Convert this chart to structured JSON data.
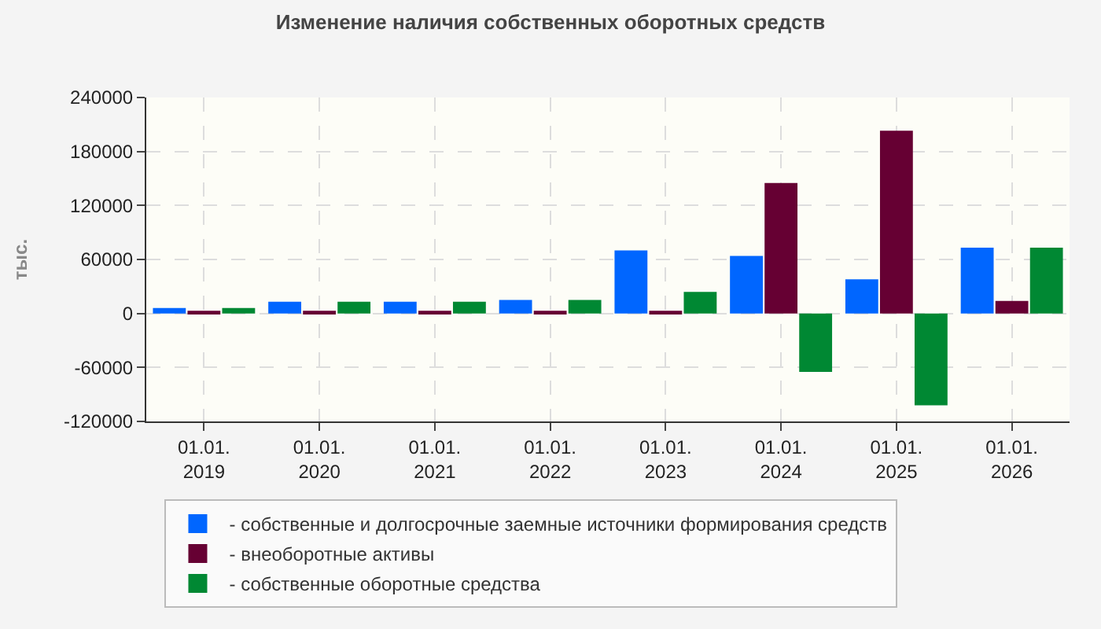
{
  "chart_data": {
    "type": "bar",
    "title": "Изменение наличия собственных оборотных средств",
    "ylabel": "тыс.",
    "categories": [
      "01.01.\n2019",
      "01.01.\n2020",
      "01.01.\n2021",
      "01.01.\n2022",
      "01.01.\n2023",
      "01.01.\n2024",
      "01.01.\n2025",
      "01.01.\n2026"
    ],
    "series": [
      {
        "name": "- собственные и долгосрочные заемные источники формирования средств",
        "color": "#0066ff",
        "values": [
          6000,
          13000,
          13000,
          15000,
          70000,
          64000,
          38000,
          73000
        ]
      },
      {
        "name": "- внеоборотные активы",
        "color": "#660033",
        "values": [
          3000,
          3000,
          3000,
          3000,
          3000,
          145000,
          203000,
          14000
        ]
      },
      {
        "name": "- собственные оборотные средства",
        "color": "#008833",
        "values": [
          6000,
          13000,
          13000,
          15000,
          24000,
          -65000,
          -102000,
          73000
        ]
      }
    ],
    "ylim": [
      -120000,
      240000
    ],
    "yticks": [
      -120000,
      -60000,
      0,
      60000,
      120000,
      180000,
      240000
    ],
    "grid": true,
    "legend": "bottom"
  }
}
